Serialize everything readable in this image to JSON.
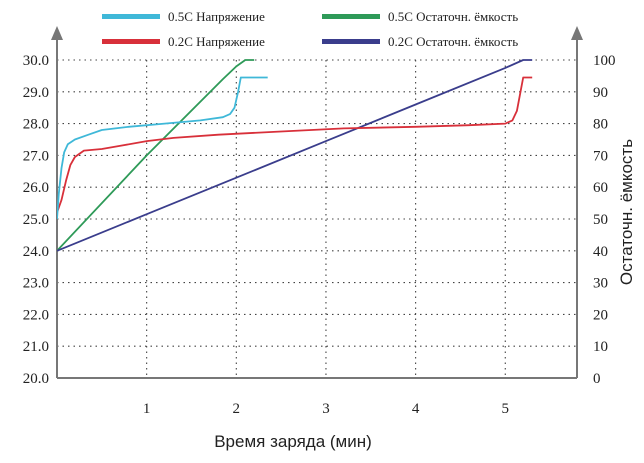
{
  "chart_data": {
    "type": "line",
    "xlabel": "Время заряда (мин)",
    "ylabel": "",
    "y2label": "Остаточн. ёмкость",
    "xlim": [
      0,
      5.8
    ],
    "xticks": [
      "1",
      "2",
      "3",
      "4",
      "5"
    ],
    "xtick_values": [
      1,
      2,
      3,
      4,
      5
    ],
    "ylim": [
      20.0,
      30.0
    ],
    "yticks": [
      "30.0",
      "29.0",
      "28.0",
      "27.0",
      "26.0",
      "25.0",
      "24.0",
      "23.0",
      "22.0",
      "21.0",
      "20.0"
    ],
    "ytick_values": [
      30,
      29,
      28,
      27,
      26,
      25,
      24,
      23,
      22,
      21,
      20
    ],
    "y2lim": [
      0,
      100
    ],
    "y2ticks": [
      "100",
      "90",
      "80",
      "70",
      "60",
      "50",
      "40",
      "30",
      "20",
      "10",
      "0"
    ],
    "y2tick_values": [
      100,
      90,
      80,
      70,
      60,
      50,
      40,
      30,
      20,
      10,
      0
    ],
    "grid": true,
    "legend_position": "top",
    "series": [
      {
        "name": "0.5C Напряжение",
        "axis": "left",
        "color": "#3fb8d8",
        "points": [
          [
            0,
            25.0
          ],
          [
            0.02,
            25.8
          ],
          [
            0.05,
            26.6
          ],
          [
            0.08,
            27.1
          ],
          [
            0.12,
            27.35
          ],
          [
            0.2,
            27.5
          ],
          [
            0.35,
            27.65
          ],
          [
            0.5,
            27.8
          ],
          [
            0.8,
            27.9
          ],
          [
            1.2,
            28.0
          ],
          [
            1.6,
            28.1
          ],
          [
            1.85,
            28.2
          ],
          [
            1.93,
            28.3
          ],
          [
            1.98,
            28.5
          ],
          [
            2.02,
            29.0
          ],
          [
            2.05,
            29.45
          ],
          [
            2.35,
            29.45
          ]
        ]
      },
      {
        "name": "0.2C Напряжение",
        "axis": "left",
        "color": "#d8303a",
        "points": [
          [
            0,
            25.2
          ],
          [
            0.05,
            25.6
          ],
          [
            0.1,
            26.2
          ],
          [
            0.15,
            26.7
          ],
          [
            0.2,
            26.95
          ],
          [
            0.3,
            27.15
          ],
          [
            0.5,
            27.2
          ],
          [
            0.7,
            27.3
          ],
          [
            1.0,
            27.45
          ],
          [
            1.3,
            27.55
          ],
          [
            1.8,
            27.65
          ],
          [
            2.5,
            27.75
          ],
          [
            3.2,
            27.85
          ],
          [
            4.0,
            27.9
          ],
          [
            4.6,
            27.95
          ],
          [
            5.0,
            28.0
          ],
          [
            5.08,
            28.1
          ],
          [
            5.13,
            28.4
          ],
          [
            5.17,
            29.0
          ],
          [
            5.2,
            29.45
          ],
          [
            5.3,
            29.45
          ]
        ]
      },
      {
        "name": "0.5C Остаточн. ёмкость",
        "axis": "right",
        "color": "#2e9a58",
        "points": [
          [
            0,
            40
          ],
          [
            1.0,
            70
          ],
          [
            1.85,
            94
          ],
          [
            2.0,
            98
          ],
          [
            2.1,
            100
          ],
          [
            2.2,
            100
          ]
        ]
      },
      {
        "name": "0.2C Остаточн. ёмкость",
        "axis": "right",
        "color": "#3a3d8c",
        "points": [
          [
            0,
            40
          ],
          [
            1.0,
            51.5
          ],
          [
            2.0,
            63
          ],
          [
            3.0,
            74.5
          ],
          [
            4.0,
            86
          ],
          [
            5.0,
            97.5
          ],
          [
            5.2,
            100
          ],
          [
            5.3,
            100
          ]
        ]
      }
    ]
  }
}
